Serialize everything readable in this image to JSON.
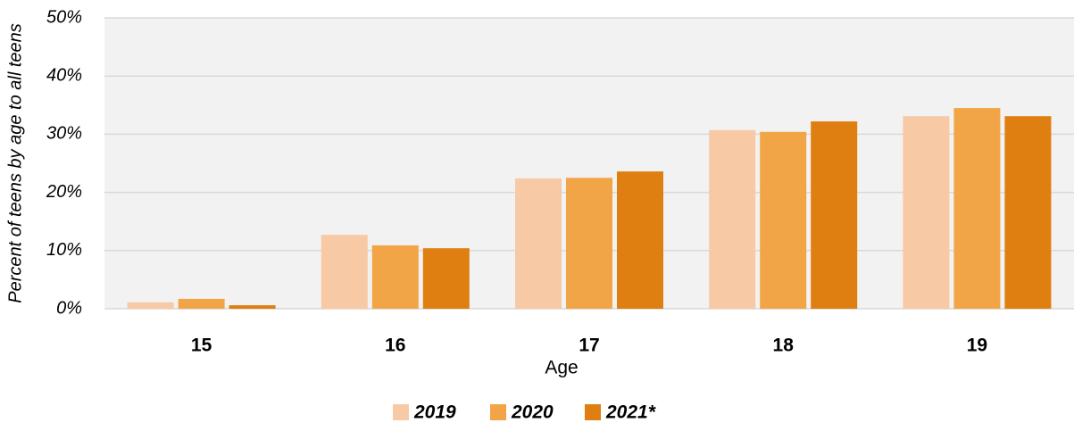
{
  "chart_data": {
    "type": "bar",
    "y_label": "Percent of teens by age to all teens",
    "x_label": "Age",
    "categories": [
      "15",
      "16",
      "17",
      "18",
      "19"
    ],
    "series": [
      {
        "name": "2019",
        "color": "#f8c9a5",
        "values": [
          1.1,
          12.7,
          22.4,
          30.7,
          33.1
        ]
      },
      {
        "name": "2020",
        "color": "#f2a546",
        "values": [
          1.7,
          10.9,
          22.5,
          30.4,
          34.5
        ]
      },
      {
        "name": "2021*",
        "color": "#df7f12",
        "values": [
          0.6,
          10.4,
          23.6,
          32.2,
          33.1
        ]
      }
    ],
    "ylim": [
      0,
      50
    ],
    "yticks": [
      {
        "value": 0,
        "label": "0%"
      },
      {
        "value": 10,
        "label": "10%"
      },
      {
        "value": 20,
        "label": "20%"
      },
      {
        "value": 30,
        "label": "30%"
      },
      {
        "value": 40,
        "label": "40%"
      },
      {
        "value": 50,
        "label": "50%"
      }
    ],
    "grid": true,
    "legend": "bottom"
  }
}
